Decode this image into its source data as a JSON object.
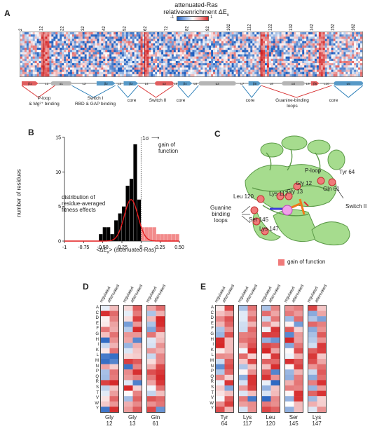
{
  "figure": {
    "panels": {
      "a": "A",
      "b": "B",
      "c": "C",
      "d": "D",
      "e": "E"
    }
  },
  "panel_a": {
    "title_line1": "attenuated-Ras",
    "title_line2": "relative enrichment ΔE",
    "title_sub": "x",
    "colorbar_ticks": [
      "-1",
      "0",
      "1"
    ],
    "position_ticks": [
      "2",
      "12",
      "22",
      "32",
      "42",
      "52",
      "62",
      "72",
      "82",
      "92",
      "102",
      "112",
      "122",
      "132",
      "142",
      "152",
      "162"
    ],
    "annotations": [
      {
        "text": "P-loop\n& Mg²⁺ binding",
        "color": "red"
      },
      {
        "text": "Switch I\nRBD & GAP binding",
        "color": "blue"
      },
      {
        "text": "core",
        "color": "blue"
      },
      {
        "text": "Switch II",
        "color": "red"
      },
      {
        "text": "core",
        "color": "blue"
      },
      {
        "text": "core",
        "color": "blue"
      },
      {
        "text": "Guanine-binding\nloops",
        "color": "red"
      },
      {
        "text": "core",
        "color": "blue"
      }
    ],
    "secondary_structure": [
      "β1",
      "L1",
      "α1",
      "L2",
      "β2",
      "L3",
      "β3",
      "L4",
      "α2",
      "L5",
      "β4",
      "L6",
      "α3",
      "L7",
      "β5",
      "L8",
      "α4",
      "L9",
      "β6",
      "L10",
      "α5"
    ],
    "colors": {
      "enriched": "#d62728",
      "depleted": "#1f5fbf",
      "neutral": "#f5f5f5",
      "helix": "#b5b5b5"
    }
  },
  "panel_b": {
    "xlabel": "<ΔE",
    "xlabel_sub": "x",
    "xlabel_tail": "> (attenuated-Ras)",
    "ylabel": "number of residues",
    "sigma_label": "1σ",
    "gof_label": "gain of\nfunction",
    "dist_label": "distribution of\nresidue-averaged\nfitness effects",
    "chart_data": {
      "type": "bar",
      "xlim": [
        -1,
        0.5
      ],
      "ylim": [
        0,
        15
      ],
      "x_ticks": [
        "-1",
        "-0.75",
        "-0.50",
        "-0.25",
        "0",
        "0.25",
        "0.50"
      ],
      "y_ticks": [
        "0",
        "5",
        "10",
        "15"
      ],
      "bins_left": [
        -0.55,
        -0.5,
        -0.45,
        -0.4,
        -0.35,
        -0.3,
        -0.25,
        -0.2,
        -0.15,
        -0.1,
        -0.05,
        0.0,
        0.05,
        0.1,
        0.15,
        0.2,
        0.25,
        0.3,
        0.35,
        0.4,
        0.45
      ],
      "bin_width": 0.05,
      "counts": [
        1,
        2,
        2,
        1,
        3,
        4,
        5,
        8,
        9,
        14,
        6,
        2,
        2,
        2,
        2,
        1,
        1,
        1,
        1,
        1,
        1
      ],
      "gof_threshold": 0.0,
      "fit_mean": -0.13,
      "fit_sd": 0.09,
      "fit_peak": 6.0,
      "colors": {
        "bars": "#000000",
        "gof_bars": "#f28b8b",
        "fit": "#e41a1c"
      }
    }
  },
  "panel_c": {
    "labels": {
      "ploop": "P-loop",
      "tyr64": "Tyr 64",
      "gly12": "Gly 12",
      "gly13": "Gly 13",
      "gln61": "Gln 61",
      "leu120": "Leu 120",
      "lys117": "Lys 117",
      "guanine": "Guanine\nbinding\nloops",
      "ser145": "Ser 145",
      "lys147": "Lys 147",
      "switch2": "Switch II"
    },
    "legend": "gain of function"
  },
  "panel_d": {
    "heads": [
      "regulated",
      "attenuated"
    ],
    "amino_acids": [
      "A",
      "C",
      "D",
      "E",
      "F",
      "G",
      "H",
      "I",
      "K",
      "L",
      "M",
      "N",
      "P",
      "Q",
      "R",
      "S",
      "T",
      "V",
      "W",
      "Y"
    ],
    "columns": [
      {
        "res": "Gly",
        "num": "12"
      },
      {
        "res": "Gly",
        "num": "13"
      },
      {
        "res": "Gln",
        "num": "61"
      }
    ]
  },
  "panel_e": {
    "heads": [
      "regulated",
      "attenuated"
    ],
    "amino_acids": [
      "A",
      "C",
      "D",
      "E",
      "F",
      "G",
      "H",
      "I",
      "K",
      "L",
      "M",
      "N",
      "P",
      "Q",
      "R",
      "S",
      "T",
      "V",
      "W",
      "Y"
    ],
    "columns": [
      {
        "res": "Tyr",
        "num": "64"
      },
      {
        "res": "Lys",
        "num": "117"
      },
      {
        "res": "Leu",
        "num": "120"
      },
      {
        "res": "Ser",
        "num": "145"
      },
      {
        "res": "Lys",
        "num": "147"
      }
    ]
  }
}
